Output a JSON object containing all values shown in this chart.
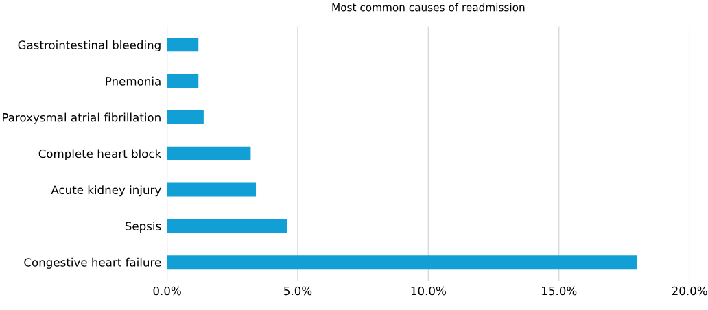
{
  "chart_data": {
    "type": "bar",
    "orientation": "horizontal",
    "title": "Most common causes of readmission",
    "categories": [
      "Gastrointestinal bleeding",
      "Pnemonia",
      "Paroxysmal atrial fibrillation",
      "Complete heart block",
      "Acute kidney injury",
      "Sepsis",
      "Congestive heart failure"
    ],
    "values": [
      1.2,
      1.2,
      1.4,
      3.2,
      3.4,
      4.6,
      18.0
    ],
    "color": "#119fd6",
    "xlim": [
      0,
      20
    ],
    "xticks": [
      {
        "value": 0,
        "label": "0.0%"
      },
      {
        "value": 5,
        "label": "5.0%"
      },
      {
        "value": 10,
        "label": "10.0%"
      },
      {
        "value": 15,
        "label": "15.0%"
      },
      {
        "value": 20,
        "label": "20.0%"
      }
    ],
    "grid": "x",
    "legend": false
  }
}
